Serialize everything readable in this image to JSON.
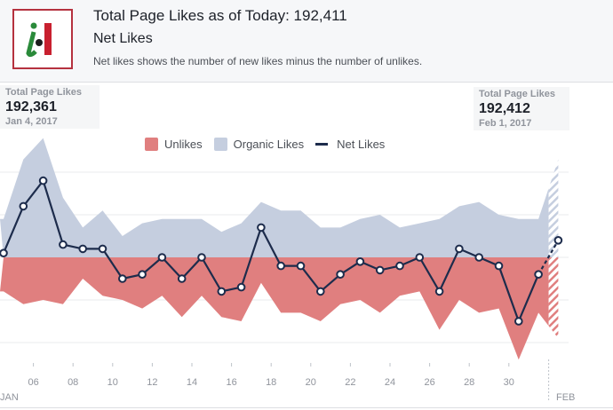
{
  "header": {
    "title": "Total Page Likes as of Today: 192,411",
    "subtitle": "Net Likes",
    "description": "Net likes shows the number of new likes minus the number of unlikes.",
    "logo_text": "i|"
  },
  "tooltip_left": {
    "label": "Total Page Likes",
    "value": "192,361",
    "date": "Jan 4, 2017"
  },
  "tooltip_right": {
    "label": "Total Page Likes",
    "value": "192,412",
    "date": "Feb 1, 2017"
  },
  "chart_data": {
    "type": "area",
    "title": "Net Likes",
    "x": [
      "Jan 4",
      "Jan 5",
      "Jan 6",
      "Jan 7",
      "Jan 8",
      "Jan 9",
      "Jan 10",
      "Jan 11",
      "Jan 12",
      "Jan 13",
      "Jan 14",
      "Jan 15",
      "Jan 16",
      "Jan 17",
      "Jan 18",
      "Jan 19",
      "Jan 20",
      "Jan 21",
      "Jan 22",
      "Jan 23",
      "Jan 24",
      "Jan 25",
      "Jan 26",
      "Jan 27",
      "Jan 28",
      "Jan 29",
      "Jan 30",
      "Jan 31",
      "Feb 1"
    ],
    "tick_labels": [
      "06",
      "08",
      "10",
      "12",
      "14",
      "16",
      "18",
      "20",
      "22",
      "24",
      "26",
      "28",
      "30"
    ],
    "month_labels": [
      "JAN",
      "FEB"
    ],
    "series": [
      {
        "name": "Unlikes",
        "type": "area",
        "color": "#e07f7f",
        "values": [
          8,
          11,
          10,
          11,
          5,
          9,
          10,
          12,
          9,
          14,
          9,
          14,
          15,
          6,
          13,
          13,
          15,
          11,
          10,
          13,
          9,
          8,
          17,
          10,
          13,
          12,
          24,
          13,
          19
        ]
      },
      {
        "name": "Organic Likes",
        "type": "area",
        "color": "#c5cedf",
        "values": [
          9,
          23,
          28,
          14,
          7,
          11,
          5,
          8,
          9,
          9,
          9,
          6,
          8,
          13,
          11,
          11,
          7,
          7,
          9,
          10,
          7,
          8,
          9,
          12,
          13,
          10,
          9,
          9,
          23
        ]
      },
      {
        "name": "Net Likes",
        "type": "line",
        "color": "#1d2c4c",
        "values": [
          1,
          12,
          18,
          3,
          2,
          2,
          -5,
          -4,
          0,
          -5,
          0,
          -8,
          -7,
          7,
          -2,
          -2,
          -8,
          -4,
          -1,
          -3,
          -2,
          0,
          -8,
          2,
          0,
          -2,
          -15,
          -4,
          4
        ]
      }
    ],
    "partial_last_point": true,
    "ylim": [
      -30,
      30
    ],
    "grid": true,
    "legend_position": "top-center",
    "y_tick_labels_shown": false
  }
}
